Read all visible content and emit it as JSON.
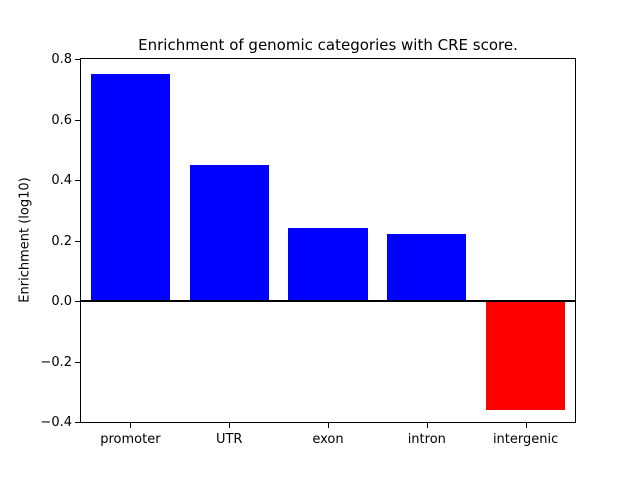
{
  "figure": {
    "background": "#ffffff",
    "frame_color": "#000000"
  },
  "chart_data": {
    "type": "bar",
    "title": "Enrichment of genomic categories with CRE score.",
    "xlabel": "",
    "ylabel": "Enrichment (log10)",
    "categories": [
      "promoter",
      "UTR",
      "exon",
      "intron",
      "intergenic"
    ],
    "values": [
      0.75,
      0.45,
      0.24,
      0.22,
      -0.36
    ],
    "bar_colors": [
      "#0000ff",
      "#0000ff",
      "#0000ff",
      "#0000ff",
      "#ff0000"
    ],
    "positive_color": "#0000ff",
    "negative_color": "#ff0000",
    "ylim": [
      -0.4,
      0.8
    ],
    "yticks": [
      0.8,
      0.6,
      0.4,
      0.2,
      0.0,
      -0.2,
      -0.4
    ],
    "ytick_labels": [
      "0.8",
      "0.6",
      "0.4",
      "0.2",
      "0.0",
      "−0.2",
      "−0.4"
    ],
    "bar_width_fraction": 0.8,
    "zero_line": true,
    "grid": false,
    "legend": null
  }
}
